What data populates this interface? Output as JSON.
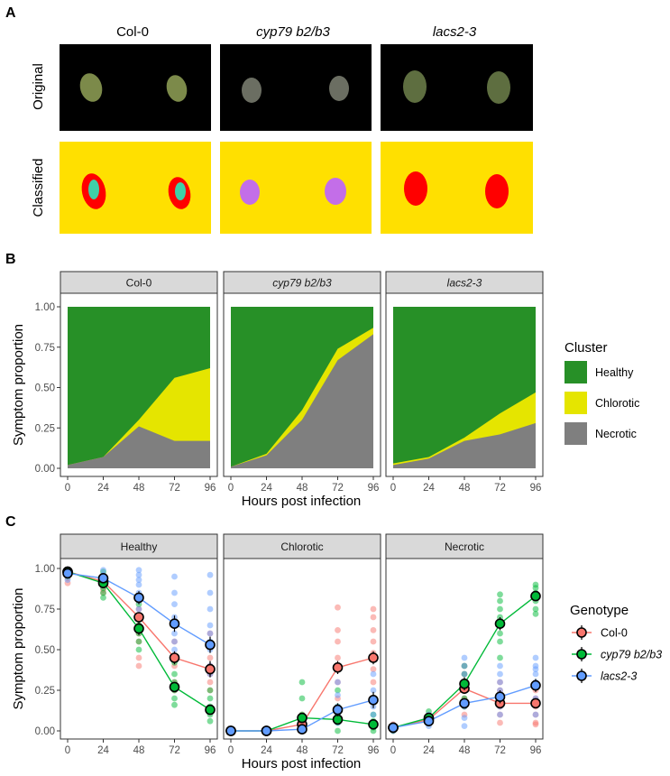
{
  "colors": {
    "background": "#ffffff",
    "strip_fill": "#d9d9d9",
    "panel_border": "#333333",
    "healthy": "#279027",
    "chlorotic": "#e5e500",
    "necrotic": "#7f7f7f",
    "col0": "#f8766d",
    "cyp79": "#00ba38",
    "lacs2": "#619cff",
    "leaf_red": "#ff0000",
    "leaf_teal": "#3fd0a8",
    "leaf_purple": "#c36ee8",
    "panel_a_bg": "#ffe000",
    "black": "#000000"
  },
  "panel_labels": {
    "a": "A",
    "b": "B",
    "c": "C"
  },
  "panel_a": {
    "genotypes": [
      "Col-0",
      "cyp79 b2/b3",
      "lacs2-3"
    ],
    "genotype_italic": [
      false,
      true,
      true
    ],
    "rows": [
      "Original",
      "Classified"
    ]
  },
  "chart_data": [
    {
      "type": "area",
      "panel": "B",
      "facets": [
        "Col-0",
        "cyp79 b2/b3",
        "lacs2-3"
      ],
      "facet_italic": [
        false,
        true,
        true
      ],
      "x": [
        0,
        24,
        48,
        72,
        96
      ],
      "xlabel": "Hours post infection",
      "ylabel": "Symptom proportion",
      "ylim": [
        0,
        1
      ],
      "xticks": [
        "0",
        "24",
        "48",
        "72",
        "96"
      ],
      "yticks": [
        "0.00",
        "0.25",
        "0.50",
        "0.75",
        "1.00"
      ],
      "legend_title": "Cluster",
      "legend_position": "right",
      "series": [
        {
          "name": "Healthy",
          "color_key": "healthy"
        },
        {
          "name": "Chlorotic",
          "color_key": "chlorotic"
        },
        {
          "name": "Necrotic",
          "color_key": "necrotic"
        }
      ],
      "stack_bottom_necrotic": [
        [
          0.02,
          0.07,
          0.26,
          0.17,
          0.17
        ],
        [
          0.01,
          0.08,
          0.3,
          0.67,
          0.83
        ],
        [
          0.02,
          0.06,
          0.17,
          0.21,
          0.28
        ]
      ],
      "stack_chlorotic_top": [
        [
          0.02,
          0.07,
          0.3,
          0.56,
          0.62
        ],
        [
          0.01,
          0.09,
          0.36,
          0.74,
          0.87
        ],
        [
          0.03,
          0.07,
          0.19,
          0.34,
          0.47
        ]
      ],
      "grid": false
    },
    {
      "type": "scatter",
      "panel": "C",
      "facets": [
        "Healthy",
        "Chlorotic",
        "Necrotic"
      ],
      "facet_italic": [
        false,
        false,
        false
      ],
      "x": [
        0,
        24,
        48,
        72,
        96
      ],
      "xlabel": "Hours post infection",
      "ylabel": "Symptom proportion",
      "ylim": [
        0,
        1
      ],
      "xticks": [
        "0",
        "24",
        "48",
        "72",
        "96"
      ],
      "yticks": [
        "0.00",
        "0.25",
        "0.50",
        "0.75",
        "1.00"
      ],
      "legend_title": "Genotype",
      "legend_position": "right",
      "series": [
        {
          "name": "Col-0",
          "italic": false,
          "color_key": "col0",
          "means": [
            [
              0.98,
              0.92,
              0.7,
              0.45,
              0.38
            ],
            [
              0.0,
              0.0,
              0.04,
              0.39,
              0.45
            ],
            [
              0.02,
              0.07,
              0.26,
              0.17,
              0.17
            ]
          ],
          "errors": [
            [
              0.01,
              0.02,
              0.03,
              0.04,
              0.05
            ],
            [
              0.0,
              0.0,
              0.02,
              0.04,
              0.04
            ],
            [
              0.01,
              0.01,
              0.03,
              0.03,
              0.03
            ]
          ],
          "reps": [
            [
              [
                0.99,
                0.97,
                0.94,
                0.91
              ],
              [
                0.95,
                0.92,
                0.9,
                0.87,
                0.85
              ],
              [
                0.8,
                0.75,
                0.7,
                0.65,
                0.6,
                0.55,
                0.45,
                0.4
              ],
              [
                0.65,
                0.55,
                0.45,
                0.4,
                0.3,
                0.25
              ],
              [
                0.6,
                0.52,
                0.45,
                0.4,
                0.35,
                0.3,
                0.25
              ]
            ],
            [
              [
                0.0,
                0.01
              ],
              [
                0.0,
                0.01
              ],
              [
                0.0,
                0.02,
                0.05,
                0.08,
                0.1
              ],
              [
                0.76,
                0.62,
                0.55,
                0.45,
                0.38,
                0.3,
                0.2
              ],
              [
                0.75,
                0.7,
                0.62,
                0.55,
                0.48,
                0.45,
                0.38,
                0.3
              ]
            ],
            [
              [
                0.0,
                0.01,
                0.02,
                0.04
              ],
              [
                0.05,
                0.07,
                0.09
              ],
              [
                0.4,
                0.35,
                0.3,
                0.25,
                0.2,
                0.15,
                0.1
              ],
              [
                0.3,
                0.25,
                0.2,
                0.15,
                0.1,
                0.05
              ],
              [
                0.25,
                0.2,
                0.15,
                0.1,
                0.05,
                0.04
              ]
            ]
          ]
        },
        {
          "name": "cyp79 b2/b3",
          "italic": true,
          "color_key": "cyp79",
          "means": [
            [
              0.98,
              0.91,
              0.63,
              0.27,
              0.13
            ],
            [
              0.0,
              0.0,
              0.08,
              0.07,
              0.04
            ],
            [
              0.02,
              0.08,
              0.29,
              0.66,
              0.83
            ]
          ],
          "errors": [
            [
              0.01,
              0.02,
              0.04,
              0.03,
              0.03
            ],
            [
              0.0,
              0.0,
              0.02,
              0.03,
              0.02
            ],
            [
              0.01,
              0.01,
              0.04,
              0.04,
              0.03
            ]
          ],
          "reps": [
            [
              [
                0.99,
                0.97,
                0.95
              ],
              [
                0.98,
                0.95,
                0.92,
                0.9,
                0.88,
                0.85,
                0.82
              ],
              [
                0.78,
                0.7,
                0.65,
                0.6,
                0.55,
                0.5
              ],
              [
                0.42,
                0.35,
                0.3,
                0.25,
                0.2,
                0.16
              ],
              [
                0.25,
                0.2,
                0.15,
                0.1,
                0.06
              ]
            ],
            [
              [
                0.0,
                0.01
              ],
              [
                0.0,
                0.01
              ],
              [
                0.3,
                0.2,
                0.1,
                0.05,
                0.02
              ],
              [
                0.25,
                0.15,
                0.1,
                0.05,
                0.0
              ],
              [
                0.1,
                0.06,
                0.04,
                0.02,
                0.0
              ]
            ],
            [
              [
                0.0,
                0.01,
                0.02
              ],
              [
                0.05,
                0.08,
                0.12
              ],
              [
                0.4,
                0.35,
                0.3,
                0.25,
                0.2,
                0.15
              ],
              [
                0.84,
                0.8,
                0.75,
                0.7,
                0.6,
                0.55,
                0.45
              ],
              [
                0.9,
                0.88,
                0.85,
                0.8,
                0.75,
                0.72
              ]
            ]
          ]
        },
        {
          "name": "lacs2-3",
          "italic": true,
          "color_key": "lacs2",
          "means": [
            [
              0.97,
              0.94,
              0.82,
              0.66,
              0.53
            ],
            [
              0.0,
              0.0,
              0.01,
              0.13,
              0.19
            ],
            [
              0.02,
              0.06,
              0.17,
              0.21,
              0.28
            ]
          ],
          "errors": [
            [
              0.01,
              0.02,
              0.04,
              0.05,
              0.05
            ],
            [
              0.0,
              0.0,
              0.01,
              0.04,
              0.05
            ],
            [
              0.01,
              0.01,
              0.03,
              0.04,
              0.04
            ]
          ],
          "reps": [
            [
              [
                0.99,
                0.96,
                0.93
              ],
              [
                0.99,
                0.96,
                0.93,
                0.9
              ],
              [
                0.99,
                0.96,
                0.93,
                0.9,
                0.85,
                0.8,
                0.75,
                0.7
              ],
              [
                0.95,
                0.85,
                0.78,
                0.7,
                0.65,
                0.6,
                0.55,
                0.5,
                0.45
              ],
              [
                0.96,
                0.85,
                0.75,
                0.65,
                0.6,
                0.55,
                0.5,
                0.4,
                0.35
              ]
            ],
            [
              [
                0.0,
                0.01
              ],
              [
                0.0,
                0.01
              ],
              [
                0.0,
                0.01,
                0.02,
                0.04
              ],
              [
                0.4,
                0.3,
                0.22,
                0.15,
                0.1,
                0.05
              ],
              [
                0.45,
                0.35,
                0.25,
                0.2,
                0.15,
                0.1,
                0.05
              ]
            ],
            [
              [
                0.0,
                0.01,
                0.02
              ],
              [
                0.03,
                0.06,
                0.1
              ],
              [
                0.45,
                0.4,
                0.35,
                0.25,
                0.15,
                0.08,
                0.03
              ],
              [
                0.4,
                0.35,
                0.3,
                0.25,
                0.2,
                0.15,
                0.1
              ],
              [
                0.45,
                0.4,
                0.38,
                0.35,
                0.3,
                0.2,
                0.1
              ]
            ]
          ]
        }
      ],
      "grid": false
    }
  ]
}
